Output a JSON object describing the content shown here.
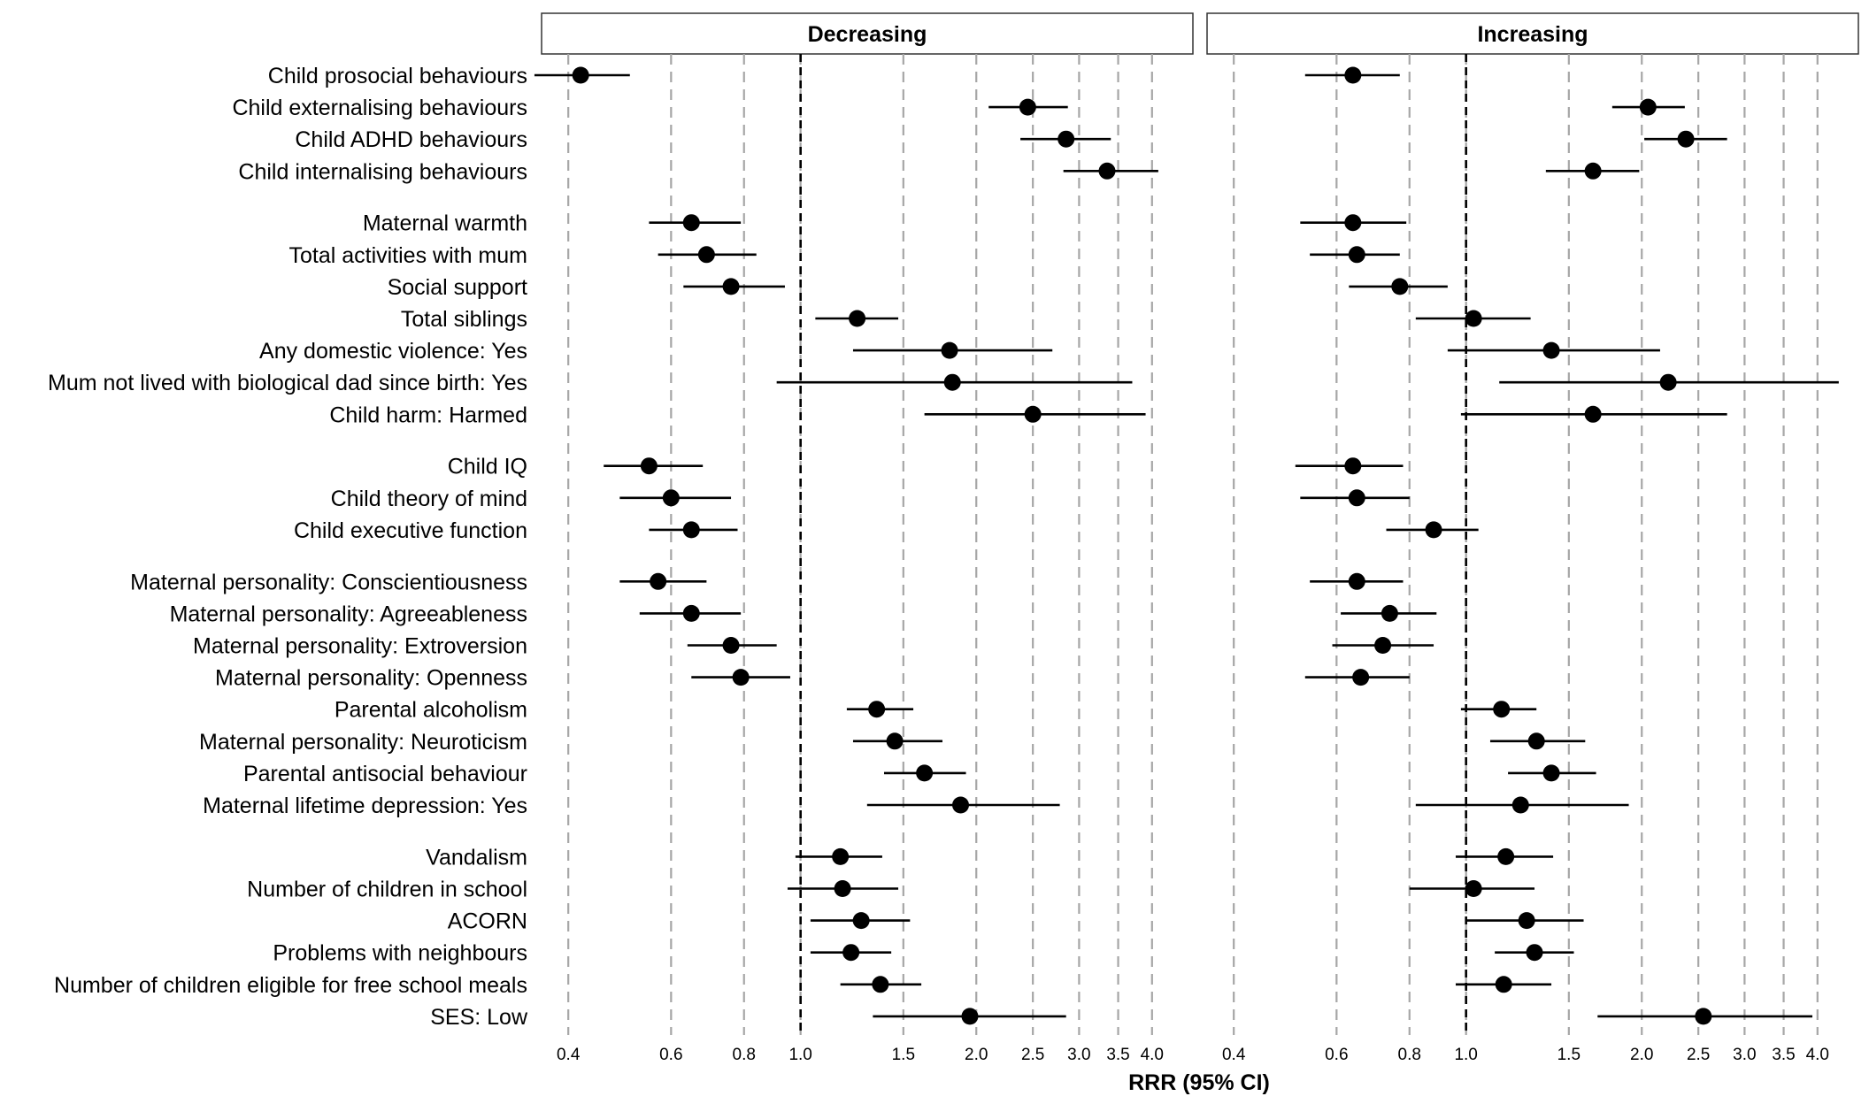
{
  "chart_data": {
    "type": "forest",
    "xlabel": "RRR (95% CI)",
    "xscale": "log",
    "xlim": [
      0.36,
      4.7
    ],
    "xticks": [
      0.4,
      0.6,
      0.8,
      1.0,
      1.5,
      2.0,
      2.5,
      3.0,
      3.5,
      4.0
    ],
    "xtick_labels": [
      "0.4",
      "0.6",
      "0.8",
      "1.0",
      "1.5",
      "2.0",
      "2.5",
      "3.0",
      "3.5",
      "4.0"
    ],
    "reference_line": 1.0,
    "grid": "vertical dashed",
    "panels": [
      {
        "title": "Decreasing",
        "groups": [
          [
            {
              "label": "Child prosocial behaviours",
              "est": 0.42,
              "lo": 0.35,
              "hi": 0.51
            },
            {
              "label": "Child externalising behaviours",
              "est": 2.45,
              "lo": 2.1,
              "hi": 2.87
            },
            {
              "label": "Child ADHD behaviours",
              "est": 2.85,
              "lo": 2.38,
              "hi": 3.4
            },
            {
              "label": "Child internalising behaviours",
              "est": 3.35,
              "lo": 2.82,
              "hi": 4.1
            }
          ],
          [
            {
              "label": "Maternal warmth",
              "est": 0.65,
              "lo": 0.55,
              "hi": 0.79
            },
            {
              "label": "Total activities with mum",
              "est": 0.69,
              "lo": 0.57,
              "hi": 0.84
            },
            {
              "label": "Social support",
              "est": 0.76,
              "lo": 0.63,
              "hi": 0.94
            },
            {
              "label": "Total siblings",
              "est": 1.25,
              "lo": 1.06,
              "hi": 1.47
            },
            {
              "label": "Any domestic violence: Yes",
              "est": 1.8,
              "lo": 1.23,
              "hi": 2.7
            },
            {
              "label": "Mum not lived with biological dad since birth: Yes",
              "est": 1.82,
              "lo": 0.91,
              "hi": 3.7
            },
            {
              "label": "Child harm: Harmed",
              "est": 2.5,
              "lo": 1.63,
              "hi": 3.9
            }
          ],
          [
            {
              "label": "Child IQ",
              "est": 0.55,
              "lo": 0.46,
              "hi": 0.68
            },
            {
              "label": "Child theory of mind",
              "est": 0.6,
              "lo": 0.49,
              "hi": 0.76
            },
            {
              "label": "Child executive function",
              "est": 0.65,
              "lo": 0.55,
              "hi": 0.78
            }
          ],
          [
            {
              "label": "Maternal personality: Conscientiousness",
              "est": 0.57,
              "lo": 0.49,
              "hi": 0.69
            },
            {
              "label": "Maternal personality: Agreeableness",
              "est": 0.65,
              "lo": 0.53,
              "hi": 0.79
            },
            {
              "label": "Maternal personality: Extroversion",
              "est": 0.76,
              "lo": 0.64,
              "hi": 0.91
            },
            {
              "label": "Maternal personality: Openness",
              "est": 0.79,
              "lo": 0.65,
              "hi": 0.96
            },
            {
              "label": "Parental alcoholism",
              "est": 1.35,
              "lo": 1.2,
              "hi": 1.56
            },
            {
              "label": "Maternal personality: Neuroticism",
              "est": 1.45,
              "lo": 1.23,
              "hi": 1.75
            },
            {
              "label": "Parental antisocial behaviour",
              "est": 1.63,
              "lo": 1.39,
              "hi": 1.92
            },
            {
              "label": "Maternal lifetime depression: Yes",
              "est": 1.88,
              "lo": 1.3,
              "hi": 2.78
            }
          ],
          [
            {
              "label": "Vandalism",
              "est": 1.17,
              "lo": 0.98,
              "hi": 1.38
            },
            {
              "label": "Number of children in school",
              "est": 1.18,
              "lo": 0.95,
              "hi": 1.47
            },
            {
              "label": "ACORN",
              "est": 1.27,
              "lo": 1.04,
              "hi": 1.54
            },
            {
              "label": "Problems with neighbours",
              "est": 1.22,
              "lo": 1.04,
              "hi": 1.43
            },
            {
              "label": "Number of children eligible for free school meals",
              "est": 1.37,
              "lo": 1.17,
              "hi": 1.61
            },
            {
              "label": "SES: Low",
              "est": 1.95,
              "lo": 1.33,
              "hi": 2.85
            }
          ]
        ]
      },
      {
        "title": "Increasing",
        "groups": [
          [
            {
              "label": "Child prosocial behaviours",
              "est": 0.64,
              "lo": 0.53,
              "hi": 0.77
            },
            {
              "label": "Child externalising behaviours",
              "est": 2.05,
              "lo": 1.78,
              "hi": 2.37
            },
            {
              "label": "Child ADHD behaviours",
              "est": 2.38,
              "lo": 2.02,
              "hi": 2.8
            },
            {
              "label": "Child internalising behaviours",
              "est": 1.65,
              "lo": 1.37,
              "hi": 1.98
            }
          ],
          [
            {
              "label": "Maternal warmth",
              "est": 0.64,
              "lo": 0.52,
              "hi": 0.79
            },
            {
              "label": "Total activities with mum",
              "est": 0.65,
              "lo": 0.54,
              "hi": 0.77
            },
            {
              "label": "Social support",
              "est": 0.77,
              "lo": 0.63,
              "hi": 0.93
            },
            {
              "label": "Total siblings",
              "est": 1.03,
              "lo": 0.82,
              "hi": 1.29
            },
            {
              "label": "Any domestic violence: Yes",
              "est": 1.4,
              "lo": 0.93,
              "hi": 2.15
            },
            {
              "label": "Mum not lived with biological dad since birth: Yes",
              "est": 2.22,
              "lo": 1.14,
              "hi": 4.35
            },
            {
              "label": "Child harm: Harmed",
              "est": 1.65,
              "lo": 0.98,
              "hi": 2.8
            }
          ],
          [
            {
              "label": "Child IQ",
              "est": 0.64,
              "lo": 0.51,
              "hi": 0.78
            },
            {
              "label": "Child theory of mind",
              "est": 0.65,
              "lo": 0.52,
              "hi": 0.8
            },
            {
              "label": "Child executive function",
              "est": 0.88,
              "lo": 0.73,
              "hi": 1.05
            }
          ],
          [
            {
              "label": "Maternal personality: Conscientiousness",
              "est": 0.65,
              "lo": 0.54,
              "hi": 0.78
            },
            {
              "label": "Maternal personality: Agreeableness",
              "est": 0.74,
              "lo": 0.61,
              "hi": 0.89
            },
            {
              "label": "Maternal personality: Extroversion",
              "est": 0.72,
              "lo": 0.59,
              "hi": 0.88
            },
            {
              "label": "Maternal personality: Openness",
              "est": 0.66,
              "lo": 0.53,
              "hi": 0.8
            },
            {
              "label": "Parental alcoholism",
              "est": 1.15,
              "lo": 0.98,
              "hi": 1.32
            },
            {
              "label": "Maternal personality: Neuroticism",
              "est": 1.32,
              "lo": 1.1,
              "hi": 1.6
            },
            {
              "label": "Parental antisocial behaviour",
              "est": 1.4,
              "lo": 1.18,
              "hi": 1.67
            },
            {
              "label": "Maternal lifetime depression: Yes",
              "est": 1.24,
              "lo": 0.82,
              "hi": 1.9
            }
          ],
          [
            {
              "label": "Vandalism",
              "est": 1.17,
              "lo": 0.96,
              "hi": 1.41
            },
            {
              "label": "Number of children in school",
              "est": 1.03,
              "lo": 0.8,
              "hi": 1.31
            },
            {
              "label": "ACORN",
              "est": 1.27,
              "lo": 1.0,
              "hi": 1.59
            },
            {
              "label": "Problems with neighbours",
              "est": 1.31,
              "lo": 1.12,
              "hi": 1.53
            },
            {
              "label": "Number of children eligible for free school meals",
              "est": 1.16,
              "lo": 0.96,
              "hi": 1.4
            },
            {
              "label": "SES: Low",
              "est": 2.55,
              "lo": 1.68,
              "hi": 3.92
            }
          ]
        ]
      }
    ]
  },
  "colors": {
    "marker": "#000000",
    "ci_line": "#000000",
    "grid": "#a6a6a6",
    "reference_line": "#000000",
    "strip_background": "#ffffff",
    "strip_border": "#333333"
  }
}
